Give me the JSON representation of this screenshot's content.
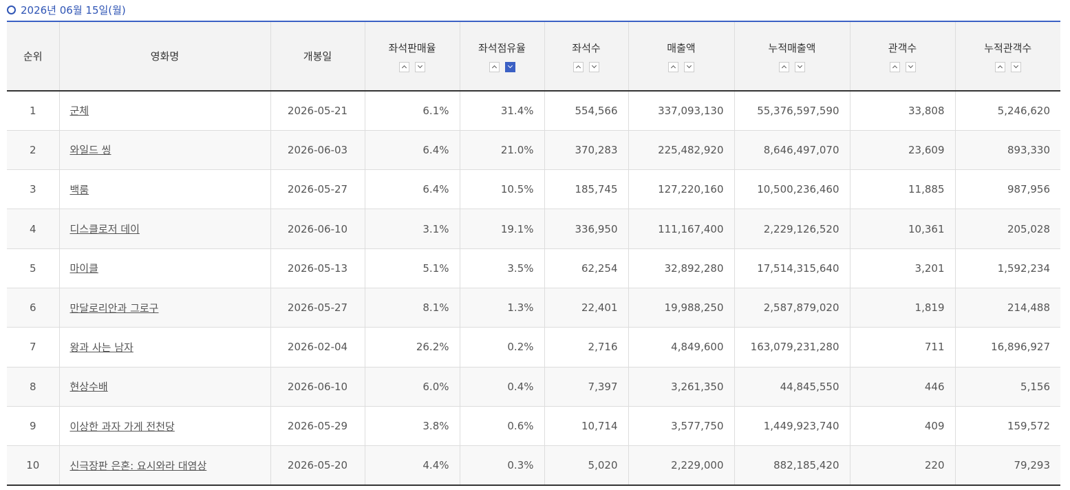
{
  "header": {
    "date": "2026년 06월 15일(월)"
  },
  "table": {
    "columns": [
      "순위",
      "영화명",
      "개봉일",
      "좌석판매율",
      "좌석점유율",
      "좌석수",
      "매출액",
      "누적매출액",
      "관객수",
      "누적관객수"
    ],
    "rows": [
      [
        "1",
        "군체",
        "2026-05-21",
        "6.1%",
        "31.4%",
        "554,566",
        "337,093,130",
        "55,376,597,590",
        "33,808",
        "5,246,620"
      ],
      [
        "2",
        "와일드 씽",
        "2026-06-03",
        "6.4%",
        "21.0%",
        "370,283",
        "225,482,920",
        "8,646,497,070",
        "23,609",
        "893,330"
      ],
      [
        "3",
        "백룸",
        "2026-05-27",
        "6.4%",
        "10.5%",
        "185,745",
        "127,220,160",
        "10,500,236,460",
        "11,885",
        "987,956"
      ],
      [
        "4",
        "디스클로저 데이",
        "2026-06-10",
        "3.1%",
        "19.1%",
        "336,950",
        "111,167,400",
        "2,229,126,520",
        "10,361",
        "205,028"
      ],
      [
        "5",
        "마이클",
        "2026-05-13",
        "5.1%",
        "3.5%",
        "62,254",
        "32,892,280",
        "17,514,315,640",
        "3,201",
        "1,592,234"
      ],
      [
        "6",
        "만달로리안과 그로구",
        "2026-05-27",
        "8.1%",
        "1.3%",
        "22,401",
        "19,988,250",
        "2,587,879,020",
        "1,819",
        "214,488"
      ],
      [
        "7",
        "왕과 사는 남자",
        "2026-02-04",
        "26.2%",
        "0.2%",
        "2,716",
        "4,849,600",
        "163,079,231,280",
        "711",
        "16,896,927"
      ],
      [
        "8",
        "현상수배",
        "2026-06-10",
        "6.0%",
        "0.4%",
        "7,397",
        "3,261,350",
        "44,845,550",
        "446",
        "5,156"
      ],
      [
        "9",
        "이상한 과자 가게 전천당",
        "2026-05-29",
        "3.8%",
        "0.6%",
        "10,714",
        "3,577,750",
        "1,449,923,740",
        "409",
        "159,572"
      ],
      [
        "10",
        "신극장판 은혼: 요시와라 대염상",
        "2026-05-20",
        "4.4%",
        "0.3%",
        "5,020",
        "2,229,000",
        "882,185,420",
        "220",
        "79,293"
      ]
    ]
  }
}
